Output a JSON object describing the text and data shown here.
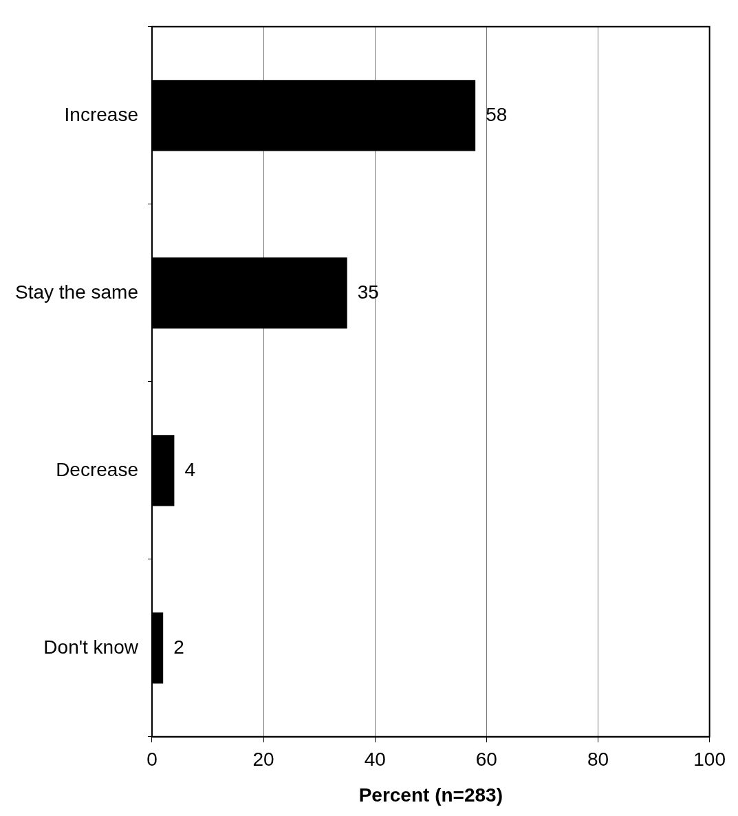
{
  "chart_data": {
    "type": "bar",
    "orientation": "horizontal",
    "categories": [
      "Increase",
      "Stay the same",
      "Decrease",
      "Don't know"
    ],
    "values": [
      58,
      35,
      4,
      2
    ],
    "color": "#000000",
    "data_labels": true,
    "xlabel": "Percent (n=283)",
    "xlim": [
      0,
      100
    ],
    "xticks": [
      0,
      20,
      40,
      60,
      80,
      100
    ],
    "grid": "x",
    "legend": false
  }
}
